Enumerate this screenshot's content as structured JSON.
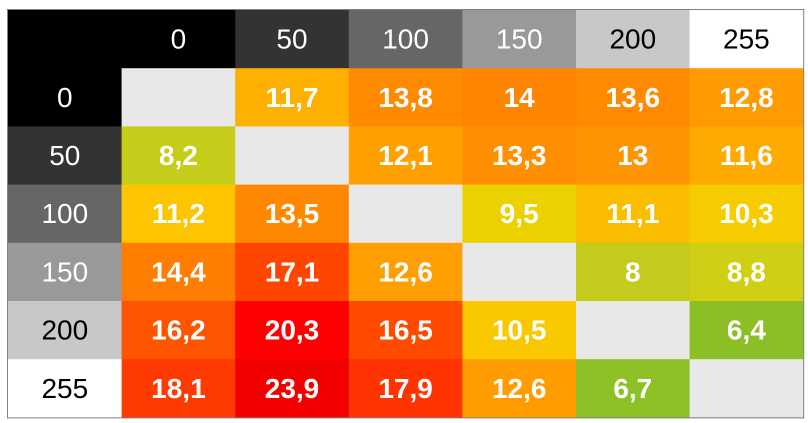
{
  "chart_data": {
    "type": "heatmap",
    "title": "",
    "xlabel": "",
    "ylabel": "",
    "x_labels": [
      "0",
      "50",
      "100",
      "150",
      "200",
      "255"
    ],
    "y_labels": [
      "0",
      "50",
      "100",
      "150",
      "200",
      "255"
    ],
    "header_colors": [
      "#000000",
      "#333333",
      "#666666",
      "#999999",
      "#c8c8c8",
      "#ffffff"
    ],
    "header_text_colors": [
      "#ffffff",
      "#ffffff",
      "#ffffff",
      "#ffffff",
      "#000000",
      "#000000"
    ],
    "empty_cell_color": "#e8e8e8",
    "values": [
      [
        null,
        "11,7",
        "13,8",
        "14",
        "13,6",
        "12,8"
      ],
      [
        "8,2",
        null,
        "12,1",
        "13,3",
        "13",
        "11,6"
      ],
      [
        "11,2",
        "13,5",
        null,
        "9,5",
        "11,1",
        "10,3"
      ],
      [
        "14,4",
        "17,1",
        "12,6",
        null,
        "8",
        "8,8"
      ],
      [
        "16,2",
        "20,3",
        "16,5",
        "10,5",
        null,
        "6,4"
      ],
      [
        "18,1",
        "23,9",
        "17,9",
        "12,6",
        "6,7",
        null
      ]
    ],
    "cell_colors": [
      [
        null,
        "#fdb000",
        "#ff8a00",
        "#ff8400",
        "#ff8a00",
        "#ff9a00"
      ],
      [
        "#c5cd1a",
        null,
        "#ffa000",
        "#ff8f00",
        "#ff9400",
        "#ffaa00"
      ],
      [
        "#fdc400",
        "#ff8800",
        null,
        "#ecd100",
        "#fbbd00",
        "#f6cc00"
      ],
      [
        "#ff7d00",
        "#ff4600",
        "#ff9e00",
        null,
        "#c4cb1c",
        "#cfcf16"
      ],
      [
        "#ff5400",
        "#ff0000",
        "#ff4a00",
        "#fac800",
        null,
        "#8bbf25"
      ],
      [
        "#ff3a00",
        "#f20000",
        "#ff3400",
        "#ff9d00",
        "#8ec126",
        null
      ]
    ]
  }
}
